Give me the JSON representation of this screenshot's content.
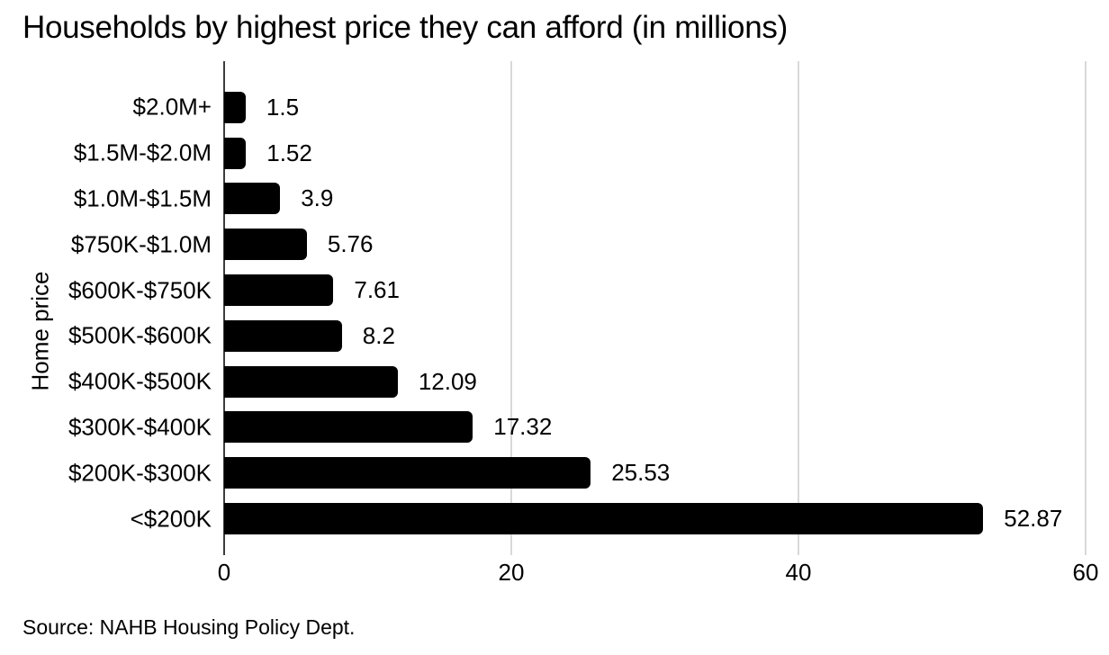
{
  "source": "Source: NAHB Housing Policy Dept.",
  "chart_data": {
    "type": "bar",
    "orientation": "horizontal",
    "title": "Households by highest price they can afford (in millions)",
    "xlabel": "",
    "ylabel": "Home price",
    "categories": [
      "$2.0M+",
      "$1.5M-$2.0M",
      "$1.0M-$1.5M",
      "$750K-$1.0M",
      "$600K-$750K",
      "$500K-$600K",
      "$400K-$500K",
      "$300K-$400K",
      "$200K-$300K",
      "<$200K"
    ],
    "values": [
      1.5,
      1.52,
      3.9,
      5.76,
      7.61,
      8.2,
      12.09,
      17.32,
      25.53,
      52.87
    ],
    "value_labels": [
      "1.5",
      "1.52",
      "3.9",
      "5.76",
      "7.61",
      "8.2",
      "12.09",
      "17.32",
      "25.53",
      "52.87"
    ],
    "xlim": [
      0,
      60
    ],
    "x_ticks": [
      0,
      20,
      40,
      60
    ],
    "grid": "vertical-gridlines-on",
    "legend": "none",
    "bar_color": "#000000",
    "gridline_color": "#d9d9d9",
    "axis_color": "#3c3c3c",
    "text_color": "#000000",
    "background_color": "#ffffff"
  }
}
